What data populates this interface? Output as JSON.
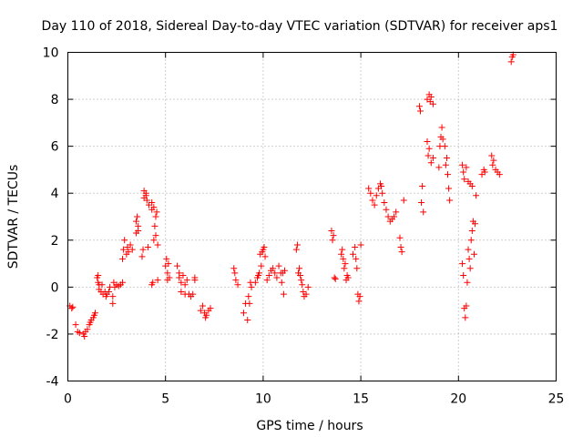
{
  "chart_data": {
    "type": "scatter",
    "title": "Day 110 of 2018, Sidereal Day-to-day VTEC variation (SDTVAR) for receiver aps1",
    "xlabel": "GPS time / hours",
    "ylabel": "SDTVAR / TECUs",
    "xlim": [
      0,
      25
    ],
    "ylim": [
      -4,
      10
    ],
    "x_ticks": [
      0,
      5,
      10,
      15,
      20,
      25
    ],
    "y_ticks": [
      -4,
      -2,
      0,
      2,
      4,
      6,
      8,
      10
    ],
    "x_tick_labels": [
      "0",
      "5",
      "10",
      "15",
      "20",
      "25"
    ],
    "y_tick_labels": [
      "-4",
      "-2",
      "0",
      "2",
      "4",
      "6",
      "8",
      "10"
    ],
    "grid": true,
    "marker": "+",
    "color": "#ff0000",
    "series": [
      {
        "name": "SDTVAR",
        "points": [
          [
            0.1,
            -0.8
          ],
          [
            0.2,
            -0.9
          ],
          [
            0.25,
            -0.85
          ],
          [
            0.4,
            -1.6
          ],
          [
            0.5,
            -1.9
          ],
          [
            0.6,
            -1.95
          ],
          [
            0.8,
            -2.0
          ],
          [
            0.85,
            -2.1
          ],
          [
            0.9,
            -1.9
          ],
          [
            1.0,
            -1.8
          ],
          [
            1.1,
            -1.6
          ],
          [
            1.15,
            -1.5
          ],
          [
            1.2,
            -1.4
          ],
          [
            1.3,
            -1.3
          ],
          [
            1.35,
            -1.2
          ],
          [
            1.4,
            -1.1
          ],
          [
            1.5,
            0.4
          ],
          [
            1.55,
            0.5
          ],
          [
            1.55,
            0.2
          ],
          [
            1.6,
            0.1
          ],
          [
            1.6,
            -0.1
          ],
          [
            1.7,
            -0.2
          ],
          [
            1.75,
            0.1
          ],
          [
            1.8,
            -0.3
          ],
          [
            1.9,
            -0.2
          ],
          [
            1.95,
            -0.4
          ],
          [
            2.0,
            -0.3
          ],
          [
            2.1,
            -0.2
          ],
          [
            2.15,
            0.0
          ],
          [
            2.3,
            -0.7
          ],
          [
            2.3,
            -0.4
          ],
          [
            2.35,
            0.2
          ],
          [
            2.4,
            0.0
          ],
          [
            2.5,
            0.1
          ],
          [
            2.6,
            0.05
          ],
          [
            2.7,
            0.1
          ],
          [
            2.8,
            0.2
          ],
          [
            2.8,
            1.2
          ],
          [
            2.85,
            1.6
          ],
          [
            2.9,
            2.0
          ],
          [
            3.0,
            1.4
          ],
          [
            3.05,
            1.7
          ],
          [
            3.1,
            1.5
          ],
          [
            3.2,
            1.8
          ],
          [
            3.3,
            1.6
          ],
          [
            3.5,
            2.3
          ],
          [
            3.5,
            2.8
          ],
          [
            3.55,
            3.0
          ],
          [
            3.6,
            2.6
          ],
          [
            3.6,
            2.4
          ],
          [
            3.8,
            1.3
          ],
          [
            3.85,
            1.6
          ],
          [
            3.9,
            4.1
          ],
          [
            3.9,
            3.8
          ],
          [
            4.0,
            3.9
          ],
          [
            4.0,
            4.0
          ],
          [
            4.05,
            3.7
          ],
          [
            4.1,
            1.7
          ],
          [
            4.15,
            3.5
          ],
          [
            4.3,
            0.1
          ],
          [
            4.3,
            3.3
          ],
          [
            4.3,
            3.6
          ],
          [
            4.35,
            0.2
          ],
          [
            4.4,
            3.4
          ],
          [
            4.4,
            2.0
          ],
          [
            4.45,
            2.6
          ],
          [
            4.5,
            2.2
          ],
          [
            4.5,
            3.0
          ],
          [
            4.55,
            3.2
          ],
          [
            4.6,
            1.8
          ],
          [
            4.6,
            0.3
          ],
          [
            5.0,
            0.9
          ],
          [
            5.05,
            1.2
          ],
          [
            5.1,
            0.6
          ],
          [
            5.1,
            0.3
          ],
          [
            5.15,
            1.0
          ],
          [
            5.2,
            0.4
          ],
          [
            5.6,
            0.9
          ],
          [
            5.7,
            0.6
          ],
          [
            5.7,
            0.4
          ],
          [
            5.8,
            0.2
          ],
          [
            5.8,
            -0.2
          ],
          [
            5.9,
            0.5
          ],
          [
            6.0,
            -0.3
          ],
          [
            6.0,
            0.1
          ],
          [
            6.1,
            0.3
          ],
          [
            6.2,
            -0.3
          ],
          [
            6.3,
            -0.4
          ],
          [
            6.4,
            -0.3
          ],
          [
            6.5,
            0.4
          ],
          [
            6.5,
            0.3
          ],
          [
            6.8,
            -1.0
          ],
          [
            6.9,
            -0.8
          ],
          [
            7.0,
            -1.1
          ],
          [
            7.05,
            -1.3
          ],
          [
            7.1,
            -1.2
          ],
          [
            7.2,
            -1.0
          ],
          [
            7.3,
            -0.9
          ],
          [
            8.5,
            0.8
          ],
          [
            8.55,
            0.6
          ],
          [
            8.6,
            0.3
          ],
          [
            8.7,
            0.1
          ],
          [
            9.0,
            -1.1
          ],
          [
            9.1,
            -0.7
          ],
          [
            9.2,
            -1.4
          ],
          [
            9.25,
            -0.4
          ],
          [
            9.3,
            -0.7
          ],
          [
            9.35,
            0.2
          ],
          [
            9.4,
            0.0
          ],
          [
            9.6,
            0.2
          ],
          [
            9.7,
            0.4
          ],
          [
            9.75,
            0.5
          ],
          [
            9.8,
            0.6
          ],
          [
            9.85,
            1.4
          ],
          [
            9.9,
            0.9
          ],
          [
            9.95,
            1.5
          ],
          [
            10.0,
            1.6
          ],
          [
            10.1,
            1.3
          ],
          [
            10.05,
            1.7
          ],
          [
            10.2,
            0.3
          ],
          [
            10.3,
            0.5
          ],
          [
            10.4,
            0.7
          ],
          [
            10.5,
            0.8
          ],
          [
            10.6,
            0.6
          ],
          [
            10.7,
            0.4
          ],
          [
            10.8,
            0.9
          ],
          [
            10.9,
            0.6
          ],
          [
            10.95,
            0.2
          ],
          [
            11.0,
            0.6
          ],
          [
            11.05,
            -0.3
          ],
          [
            11.1,
            0.7
          ],
          [
            11.7,
            1.6
          ],
          [
            11.75,
            1.8
          ],
          [
            11.8,
            0.6
          ],
          [
            11.85,
            0.8
          ],
          [
            11.9,
            0.5
          ],
          [
            11.95,
            0.3
          ],
          [
            12.0,
            0.1
          ],
          [
            12.05,
            -0.2
          ],
          [
            12.1,
            -0.4
          ],
          [
            12.2,
            -0.3
          ],
          [
            12.3,
            0.0
          ],
          [
            13.5,
            2.4
          ],
          [
            13.55,
            2.0
          ],
          [
            13.6,
            2.2
          ],
          [
            13.65,
            0.4
          ],
          [
            13.7,
            0.35
          ],
          [
            14.0,
            1.4
          ],
          [
            14.05,
            1.6
          ],
          [
            14.1,
            1.2
          ],
          [
            14.15,
            0.8
          ],
          [
            14.2,
            1.0
          ],
          [
            14.25,
            0.3
          ],
          [
            14.3,
            0.5
          ],
          [
            14.35,
            0.4
          ],
          [
            14.6,
            1.4
          ],
          [
            14.7,
            1.7
          ],
          [
            14.75,
            1.2
          ],
          [
            14.8,
            0.8
          ],
          [
            14.85,
            -0.3
          ],
          [
            14.9,
            -0.6
          ],
          [
            14.95,
            -0.4
          ],
          [
            15.0,
            1.8
          ],
          [
            15.4,
            4.2
          ],
          [
            15.5,
            4.0
          ],
          [
            15.6,
            3.7
          ],
          [
            15.7,
            3.5
          ],
          [
            15.8,
            3.9
          ],
          [
            15.9,
            4.2
          ],
          [
            16.0,
            4.4
          ],
          [
            16.05,
            4.3
          ],
          [
            16.1,
            4.0
          ],
          [
            16.2,
            3.6
          ],
          [
            16.3,
            3.3
          ],
          [
            16.4,
            3.0
          ],
          [
            16.5,
            2.8
          ],
          [
            16.6,
            2.9
          ],
          [
            16.7,
            3.0
          ],
          [
            16.8,
            3.2
          ],
          [
            17.0,
            2.1
          ],
          [
            17.05,
            1.7
          ],
          [
            17.1,
            1.5
          ],
          [
            17.2,
            3.7
          ],
          [
            18.0,
            7.7
          ],
          [
            18.05,
            7.5
          ],
          [
            18.1,
            3.6
          ],
          [
            18.15,
            4.3
          ],
          [
            18.2,
            3.2
          ],
          [
            18.4,
            8.0
          ],
          [
            18.5,
            8.2
          ],
          [
            18.55,
            7.9
          ],
          [
            18.6,
            8.1
          ],
          [
            18.7,
            7.8
          ],
          [
            18.4,
            6.2
          ],
          [
            18.45,
            5.6
          ],
          [
            18.5,
            5.9
          ],
          [
            18.6,
            5.3
          ],
          [
            18.7,
            5.5
          ],
          [
            19.0,
            5.1
          ],
          [
            19.05,
            6.0
          ],
          [
            19.1,
            6.4
          ],
          [
            19.15,
            6.8
          ],
          [
            19.2,
            6.3
          ],
          [
            19.3,
            6.0
          ],
          [
            19.35,
            5.2
          ],
          [
            19.4,
            5.5
          ],
          [
            19.45,
            4.8
          ],
          [
            19.5,
            4.2
          ],
          [
            19.55,
            3.7
          ],
          [
            20.2,
            5.2
          ],
          [
            20.25,
            4.9
          ],
          [
            20.3,
            4.6
          ],
          [
            20.4,
            5.1
          ],
          [
            20.5,
            4.5
          ],
          [
            20.6,
            4.4
          ],
          [
            20.7,
            4.3
          ],
          [
            20.2,
            1.0
          ],
          [
            20.25,
            0.5
          ],
          [
            20.3,
            -0.9
          ],
          [
            20.35,
            -1.3
          ],
          [
            20.4,
            -0.8
          ],
          [
            20.45,
            0.2
          ],
          [
            20.5,
            1.6
          ],
          [
            20.55,
            1.2
          ],
          [
            20.6,
            0.8
          ],
          [
            20.65,
            2.0
          ],
          [
            20.7,
            2.4
          ],
          [
            20.75,
            2.8
          ],
          [
            20.8,
            1.4
          ],
          [
            20.85,
            2.7
          ],
          [
            20.9,
            3.9
          ],
          [
            21.2,
            4.8
          ],
          [
            21.3,
            5.0
          ],
          [
            21.35,
            4.9
          ],
          [
            21.7,
            5.6
          ],
          [
            21.75,
            5.2
          ],
          [
            21.8,
            5.4
          ],
          [
            21.9,
            5.0
          ],
          [
            22.0,
            4.9
          ],
          [
            22.1,
            4.8
          ],
          [
            22.7,
            9.6
          ],
          [
            22.75,
            9.8
          ],
          [
            22.8,
            9.9
          ]
        ]
      }
    ]
  }
}
